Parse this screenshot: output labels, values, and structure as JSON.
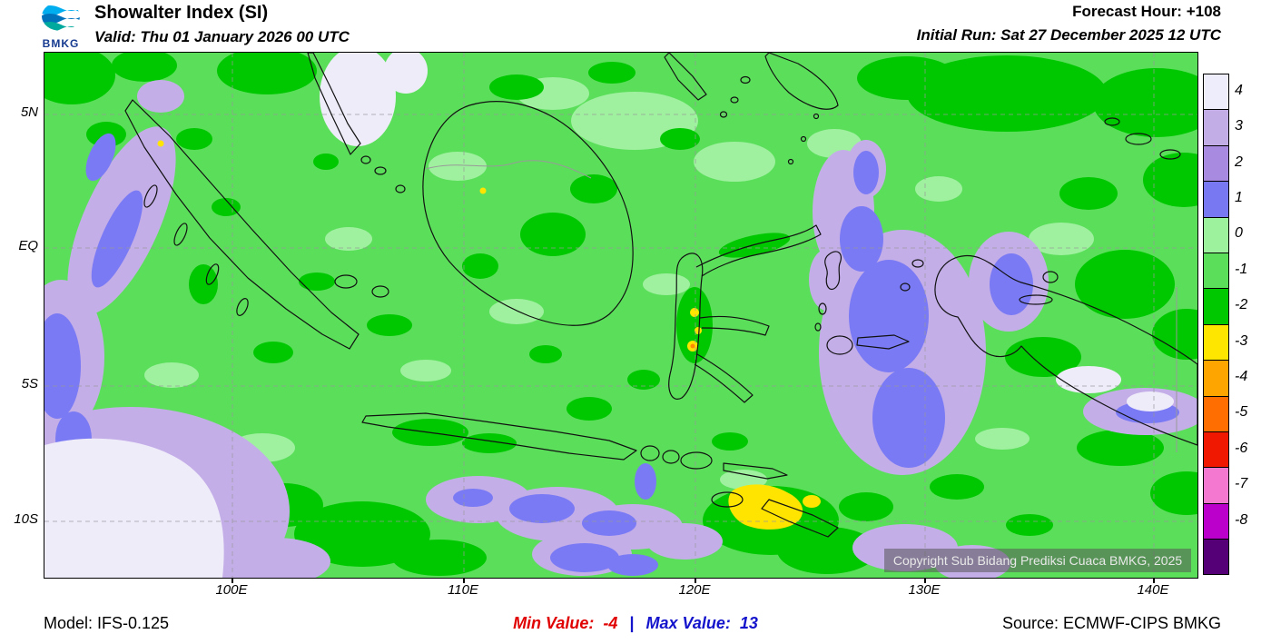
{
  "header": {
    "logo_text": "BMKG",
    "title": "Showalter Index (SI)",
    "valid": "Valid: Thu 01 January 2026 00 UTC",
    "forecast_hour": "Forecast Hour: +108",
    "initial_run": "Initial Run: Sat 27 December 2025 12 UTC"
  },
  "map": {
    "lat_labels": [
      "5N",
      "EQ",
      "5S",
      "10S"
    ],
    "lon_labels": [
      "100E",
      "110E",
      "120E",
      "130E",
      "140E"
    ],
    "copyright": "Copyright Sub Bidang Prediksi Cuaca BMKG, 2025"
  },
  "legend": {
    "labels": [
      "4",
      "3",
      "2",
      "1",
      "0",
      "-1",
      "-2",
      "-3",
      "-4",
      "-5",
      "-6",
      "-7",
      "-8"
    ],
    "colors": [
      "#EDEDFB",
      "#C3ADE6",
      "#A88BE0",
      "#7878F2",
      "#9DF29D",
      "#5BDF5B",
      "#00C800",
      "#FFE600",
      "#FFA500",
      "#FF6E00",
      "#F01800",
      "#F478D0",
      "#BB00CC",
      "#550077"
    ]
  },
  "footer": {
    "model": "Model: IFS-0.125",
    "min_label": "Min Value:",
    "min_value": "-4",
    "separator": "|",
    "max_label": "Max Value:",
    "max_value": "13",
    "source": "Source: ECMWF-CIPS BMKG"
  },
  "chart_data": {
    "type": "heatmap",
    "title": "Showalter Index (SI)",
    "lat_ticks": [
      "5N",
      "EQ",
      "5S",
      "10S"
    ],
    "lon_ticks": [
      "100E",
      "110E",
      "120E",
      "130E",
      "140E"
    ],
    "legend_levels": [
      4,
      3,
      2,
      1,
      0,
      -1,
      -2,
      -3,
      -4,
      -5,
      -6,
      -7,
      -8
    ],
    "legend_colors": [
      "#EDEDFB",
      "#C3ADE6",
      "#A88BE0",
      "#7878F2",
      "#9DF29D",
      "#5BDF5B",
      "#00C800",
      "#FFE600",
      "#FFA500",
      "#FF6E00",
      "#F01800",
      "#F478D0",
      "#BB00CC",
      "#550077"
    ],
    "min_value": -4,
    "max_value": 13
  }
}
